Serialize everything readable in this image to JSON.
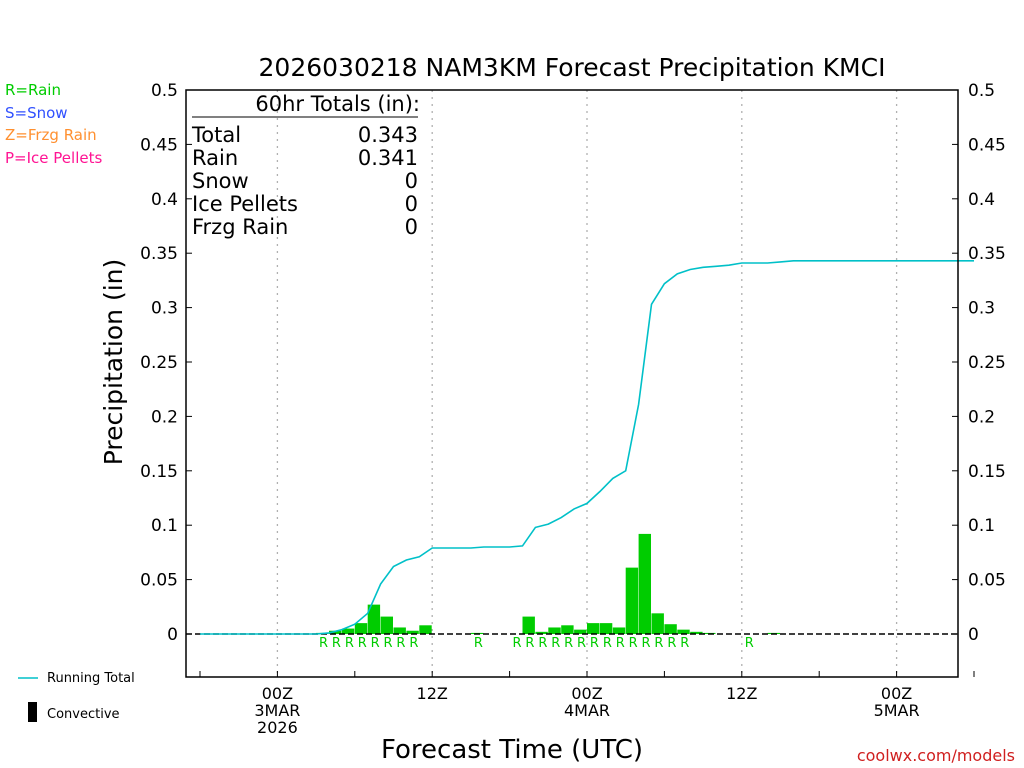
{
  "chart_data": {
    "type": "bar",
    "title": "2026030218 NAM3KM Forecast Precipitation KMCI",
    "xlabel": "Forecast Time (UTC)",
    "ylabel": "Precipitation (in)",
    "ylim": [
      -0.04,
      0.5
    ],
    "xlim": [
      0,
      60
    ],
    "y_ticks": [
      0,
      0.05,
      0.1,
      0.15,
      0.2,
      0.25,
      0.3,
      0.35,
      0.4,
      0.45,
      0.5
    ],
    "y_tick_labels": [
      "0",
      "0.05",
      "0.1",
      "0.15",
      "0.2",
      "0.25",
      "0.3",
      "0.35",
      "0.4",
      "0.45",
      "0.5"
    ],
    "x_ticks": [
      {
        "hour": 6,
        "lines": [
          "00Z",
          "3MAR",
          "2026"
        ]
      },
      {
        "hour": 18,
        "lines": [
          "12Z"
        ]
      },
      {
        "hour": 30,
        "lines": [
          "00Z",
          "4MAR"
        ]
      },
      {
        "hour": 42,
        "lines": [
          "12Z"
        ]
      },
      {
        "hour": 54,
        "lines": [
          "00Z",
          "5MAR"
        ]
      }
    ],
    "bars": {
      "name": "Hourly precipitation",
      "color": "#00cc00",
      "hours": [
        10,
        11,
        12,
        13,
        14,
        15,
        16,
        17,
        18,
        19,
        20,
        21,
        22,
        23,
        24,
        25,
        26,
        27,
        28,
        29,
        30,
        31,
        32,
        33,
        34,
        35,
        36,
        37,
        38,
        39,
        40,
        41,
        42,
        43,
        44,
        45
      ],
      "values": [
        0.001,
        0.003,
        0.005,
        0.01,
        0.027,
        0.016,
        0.006,
        0.003,
        0.008,
        0,
        0,
        0,
        0.001,
        0,
        0,
        0,
        0.016,
        0.002,
        0.006,
        0.008,
        0.004,
        0.01,
        0.01,
        0.006,
        0.061,
        0.092,
        0.019,
        0.009,
        0.004,
        0.002,
        0.001,
        0,
        0,
        0,
        0,
        0.001
      ]
    },
    "running_total": {
      "name": "Running Total",
      "color": "#00c0c8",
      "hours": [
        0,
        1,
        2,
        3,
        4,
        5,
        6,
        7,
        8,
        9,
        10,
        11,
        12,
        13,
        14,
        15,
        16,
        17,
        18,
        19,
        20,
        21,
        22,
        23,
        24,
        25,
        26,
        27,
        28,
        29,
        30,
        31,
        32,
        33,
        34,
        35,
        36,
        37,
        38,
        39,
        40,
        41,
        42,
        43,
        44,
        45,
        46,
        47,
        48,
        49,
        50,
        51,
        52,
        53,
        54,
        55,
        56,
        57,
        58,
        59,
        60
      ],
      "values": [
        0,
        0,
        0,
        0,
        0,
        0,
        0,
        0,
        0,
        0,
        0.001,
        0.004,
        0.009,
        0.019,
        0.046,
        0.062,
        0.068,
        0.071,
        0.079,
        0.079,
        0.079,
        0.079,
        0.08,
        0.08,
        0.08,
        0.081,
        0.098,
        0.101,
        0.107,
        0.115,
        0.12,
        0.131,
        0.143,
        0.15,
        0.211,
        0.303,
        0.322,
        0.331,
        0.335,
        0.337,
        0.338,
        0.339,
        0.341,
        0.341,
        0.341,
        0.342,
        0.343,
        0.343,
        0.343,
        0.343,
        0.343,
        0.343,
        0.343,
        0.343,
        0.343,
        0.343,
        0.343,
        0.343,
        0.343,
        0.343,
        0.343
      ]
    },
    "ptype_markers": {
      "hours": [
        10,
        11,
        12,
        13,
        14,
        15,
        16,
        17,
        22,
        25,
        26,
        27,
        28,
        29,
        30,
        31,
        32,
        33,
        34,
        35,
        36,
        37,
        38,
        43
      ],
      "label": "R",
      "color": "#00cc00"
    }
  },
  "totals_box": {
    "heading": "60hr Totals (in):",
    "rows": [
      {
        "label": "Total",
        "value": "0.343"
      },
      {
        "label": "Rain",
        "value": "0.341"
      },
      {
        "label": "Snow",
        "value": "0"
      },
      {
        "label": "Ice Pellets",
        "value": "0"
      },
      {
        "label": "Frzg Rain",
        "value": "0"
      }
    ]
  },
  "ptype_legend": [
    {
      "text": "R=Rain",
      "color": "#00cc00"
    },
    {
      "text": "S=Snow",
      "color": "#3050ff"
    },
    {
      "text": "Z=Frzg Rain",
      "color": "#ff9030"
    },
    {
      "text": "P=Ice Pellets",
      "color": "#ff1493"
    }
  ],
  "bottom_legend": {
    "running_total": "Running Total",
    "convective": "Convective"
  },
  "credit": "coolwx.com/models",
  "colors": {
    "axis": "#000000",
    "grid": "#b0b0b0",
    "credit": "#d02020"
  }
}
